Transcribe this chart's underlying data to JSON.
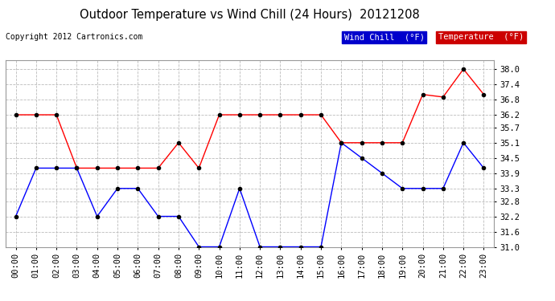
{
  "title": "Outdoor Temperature vs Wind Chill (24 Hours)  20121208",
  "copyright": "Copyright 2012 Cartronics.com",
  "background_color": "#ffffff",
  "plot_bg_color": "#ffffff",
  "grid_color": "#bbbbbb",
  "hours": [
    "00:00",
    "01:00",
    "02:00",
    "03:00",
    "04:00",
    "05:00",
    "06:00",
    "07:00",
    "08:00",
    "09:00",
    "10:00",
    "11:00",
    "12:00",
    "13:00",
    "14:00",
    "15:00",
    "16:00",
    "17:00",
    "18:00",
    "19:00",
    "20:00",
    "21:00",
    "22:00",
    "23:00"
  ],
  "temperature": [
    36.2,
    36.2,
    36.2,
    34.1,
    34.1,
    34.1,
    34.1,
    34.1,
    35.1,
    34.1,
    36.2,
    36.2,
    36.2,
    36.2,
    36.2,
    36.2,
    35.1,
    35.1,
    35.1,
    35.1,
    37.0,
    36.9,
    38.0,
    37.0
  ],
  "wind_chill": [
    32.2,
    34.1,
    34.1,
    34.1,
    32.2,
    33.3,
    33.3,
    32.2,
    32.2,
    31.0,
    31.0,
    33.3,
    31.0,
    31.0,
    31.0,
    31.0,
    35.1,
    34.5,
    33.9,
    33.3,
    33.3,
    33.3,
    35.1,
    34.1
  ],
  "temp_color": "#ff0000",
  "wind_chill_color": "#0000ff",
  "marker_color": "#000000",
  "ylim_min": 31.0,
  "ylim_max": 38.35,
  "yticks": [
    31.0,
    31.6,
    32.2,
    32.8,
    33.3,
    33.9,
    34.5,
    35.1,
    35.7,
    36.2,
    36.8,
    37.4,
    38.0
  ],
  "legend_wind_chill_bg": "#0000cc",
  "legend_temp_bg": "#cc0000",
  "legend_wind_chill_label": "Wind Chill  (°F)",
  "legend_temp_label": "Temperature  (°F)"
}
